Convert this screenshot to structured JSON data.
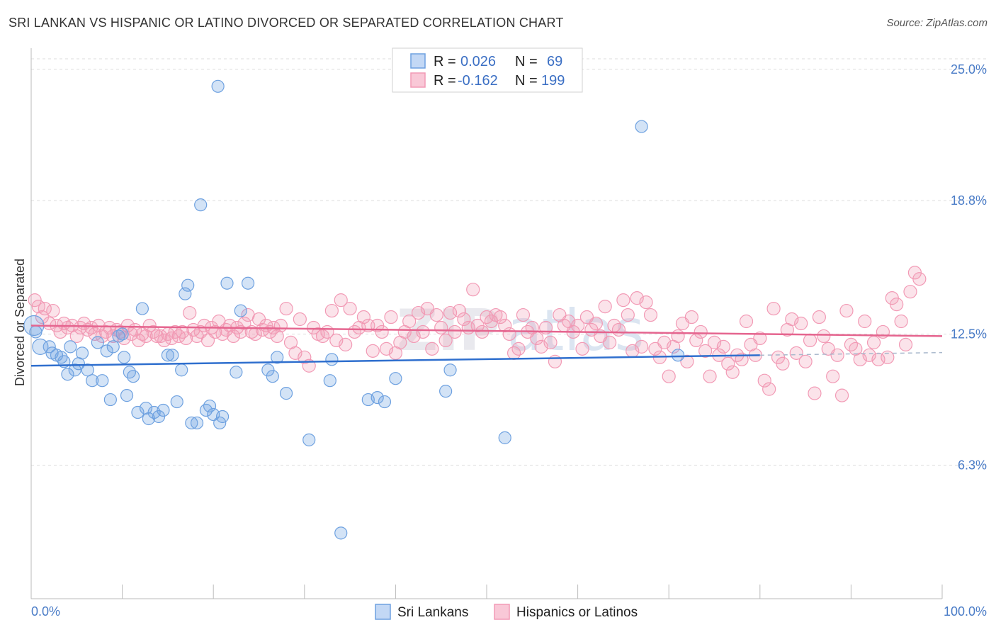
{
  "title": "SRI LANKAN VS HISPANIC OR LATINO DIVORCED OR SEPARATED CORRELATION CHART",
  "source": "Source: ZipAtlas.com",
  "watermark": {
    "left": "ZIP",
    "right": "atlas"
  },
  "legend": {
    "rows": [
      {
        "r_label": "R =",
        "r_value": "0.026",
        "n_label": "N =",
        "n_value": "69"
      },
      {
        "r_label": "R =",
        "r_value": "-0.162",
        "n_label": "N =",
        "n_value": "199"
      }
    ]
  },
  "bottom_legend": [
    "Sri Lankans",
    "Hispanics or Latinos"
  ],
  "chart_data": {
    "type": "scatter",
    "title": "SRI LANKAN VS HISPANIC OR LATINO DIVORCED OR SEPARATED CORRELATION CHART",
    "xlabel": "",
    "ylabel": "Divorced or Separated",
    "xlim": [
      0,
      100
    ],
    "ylim": [
      0,
      26
    ],
    "x_tick_labels": [
      "0.0%",
      "100.0%"
    ],
    "y_ticks": [
      6.3,
      12.5,
      18.8,
      25.0
    ],
    "y_tick_labels": [
      "6.3%",
      "12.5%",
      "18.8%",
      "25.0%"
    ],
    "grid": "horizontal dashed",
    "colors": {
      "sri": "#6ea1e0",
      "sri_line": "#2f6fce",
      "hisp": "#f29ab5",
      "hisp_line": "#e5658f"
    },
    "series": [
      {
        "name": "Sri Lankans",
        "R": 0.026,
        "N": 69,
        "trend": {
          "x": [
            0,
            80
          ],
          "y": [
            11.0,
            11.5
          ]
        },
        "points": [
          [
            0.3,
            12.9
          ],
          [
            0.5,
            12.6
          ],
          [
            1,
            11.9
          ],
          [
            2,
            11.9
          ],
          [
            2.3,
            11.6
          ],
          [
            2.8,
            11.5
          ],
          [
            3.3,
            11.4
          ],
          [
            3.6,
            11.2
          ],
          [
            4,
            10.6
          ],
          [
            4.3,
            11.9
          ],
          [
            4.8,
            10.8
          ],
          [
            5.2,
            11.1
          ],
          [
            5.6,
            11.6
          ],
          [
            6.2,
            10.8
          ],
          [
            6.7,
            10.3
          ],
          [
            7.3,
            12.1
          ],
          [
            7.8,
            10.3
          ],
          [
            8.3,
            11.7
          ],
          [
            8.7,
            9.4
          ],
          [
            9,
            11.9
          ],
          [
            9.6,
            12.4
          ],
          [
            10,
            12.5
          ],
          [
            10.2,
            11.4
          ],
          [
            10.5,
            9.6
          ],
          [
            10.8,
            10.7
          ],
          [
            11.2,
            10.5
          ],
          [
            11.7,
            8.8
          ],
          [
            12.2,
            13.7
          ],
          [
            12.6,
            9.0
          ],
          [
            12.9,
            8.5
          ],
          [
            13.5,
            8.8
          ],
          [
            14,
            8.6
          ],
          [
            14.5,
            8.9
          ],
          [
            15,
            11.5
          ],
          [
            15.5,
            11.5
          ],
          [
            16,
            9.3
          ],
          [
            16.5,
            10.8
          ],
          [
            16.9,
            14.4
          ],
          [
            17.2,
            14.8
          ],
          [
            17.6,
            8.3
          ],
          [
            18.2,
            8.3
          ],
          [
            18.6,
            18.6
          ],
          [
            19.2,
            8.9
          ],
          [
            19.6,
            9.1
          ],
          [
            20,
            8.7
          ],
          [
            20.7,
            8.3
          ],
          [
            20.5,
            24.2
          ],
          [
            21,
            8.6
          ],
          [
            21.5,
            14.9
          ],
          [
            22.5,
            10.7
          ],
          [
            23,
            13.6
          ],
          [
            23.8,
            14.9
          ],
          [
            26,
            10.8
          ],
          [
            26.5,
            10.5
          ],
          [
            27,
            11.4
          ],
          [
            28,
            9.7
          ],
          [
            30.5,
            7.5
          ],
          [
            32.8,
            10.3
          ],
          [
            33,
            11.3
          ],
          [
            34,
            3.1
          ],
          [
            37,
            9.4
          ],
          [
            38,
            9.5
          ],
          [
            38.8,
            9.3
          ],
          [
            40,
            10.4
          ],
          [
            45.5,
            9.8
          ],
          [
            46,
            10.8
          ],
          [
            52,
            7.6
          ],
          [
            67,
            22.3
          ],
          [
            71,
            11.5
          ]
        ]
      },
      {
        "name": "Hispanics or Latinos",
        "R": -0.162,
        "N": 199,
        "trend": {
          "x": [
            0,
            100
          ],
          "y": [
            12.9,
            12.4
          ]
        },
        "points": [
          [
            0.4,
            14.1
          ],
          [
            0.8,
            13.8
          ],
          [
            1.2,
            13.3
          ],
          [
            1.5,
            13.7
          ],
          [
            2,
            13.0
          ],
          [
            2.4,
            13.6
          ],
          [
            2.8,
            12.9
          ],
          [
            3.2,
            12.6
          ],
          [
            3.6,
            13.0
          ],
          [
            4,
            12.8
          ],
          [
            4.5,
            12.9
          ],
          [
            5,
            12.4
          ],
          [
            5.4,
            12.8
          ],
          [
            5.8,
            13.0
          ],
          [
            6.2,
            12.7
          ],
          [
            6.6,
            12.8
          ],
          [
            7,
            12.5
          ],
          [
            7.4,
            12.9
          ],
          [
            7.8,
            12.4
          ],
          [
            8.2,
            12.6
          ],
          [
            8.6,
            12.8
          ],
          [
            9,
            12.4
          ],
          [
            9.4,
            12.7
          ],
          [
            9.8,
            12.6
          ],
          [
            10.2,
            12.3
          ],
          [
            10.6,
            12.9
          ],
          [
            11,
            12.5
          ],
          [
            11.4,
            12.7
          ],
          [
            11.8,
            12.2
          ],
          [
            12.2,
            12.5
          ],
          [
            12.6,
            12.4
          ],
          [
            13,
            12.9
          ],
          [
            13.4,
            12.6
          ],
          [
            13.8,
            12.4
          ],
          [
            14.2,
            12.4
          ],
          [
            14.6,
            12.2
          ],
          [
            15,
            12.5
          ],
          [
            15.4,
            12.3
          ],
          [
            15.8,
            12.6
          ],
          [
            16.2,
            12.4
          ],
          [
            16.6,
            12.6
          ],
          [
            17,
            12.3
          ],
          [
            17.4,
            13.5
          ],
          [
            17.8,
            12.7
          ],
          [
            18.2,
            12.4
          ],
          [
            18.6,
            12.6
          ],
          [
            19,
            12.9
          ],
          [
            19.4,
            12.2
          ],
          [
            19.8,
            12.8
          ],
          [
            20.2,
            12.6
          ],
          [
            20.6,
            13.1
          ],
          [
            21,
            12.5
          ],
          [
            21.4,
            12.7
          ],
          [
            21.8,
            12.9
          ],
          [
            22.2,
            12.4
          ],
          [
            22.6,
            12.8
          ],
          [
            23,
            12.6
          ],
          [
            23.4,
            13.0
          ],
          [
            23.8,
            13.4
          ],
          [
            24.2,
            12.6
          ],
          [
            24.6,
            12.5
          ],
          [
            25,
            13.2
          ],
          [
            25.4,
            12.7
          ],
          [
            25.8,
            12.9
          ],
          [
            26.2,
            12.6
          ],
          [
            26.6,
            12.8
          ],
          [
            27,
            12.4
          ],
          [
            27.4,
            12.9
          ],
          [
            28,
            13.7
          ],
          [
            28.5,
            12.1
          ],
          [
            29,
            11.6
          ],
          [
            29.5,
            13.2
          ],
          [
            30,
            11.4
          ],
          [
            30.5,
            11.0
          ],
          [
            31,
            12.8
          ],
          [
            31.5,
            12.5
          ],
          [
            32,
            12.4
          ],
          [
            32.5,
            12.6
          ],
          [
            33,
            13.6
          ],
          [
            33.5,
            12.2
          ],
          [
            34,
            14.1
          ],
          [
            34.5,
            12.0
          ],
          [
            35,
            13.7
          ],
          [
            35.5,
            12.6
          ],
          [
            36,
            12.8
          ],
          [
            36.5,
            13.3
          ],
          [
            37,
            12.9
          ],
          [
            37.5,
            11.7
          ],
          [
            38,
            12.9
          ],
          [
            38.5,
            12.6
          ],
          [
            39,
            11.8
          ],
          [
            39.5,
            13.3
          ],
          [
            40,
            11.6
          ],
          [
            40.5,
            12.1
          ],
          [
            41,
            12.6
          ],
          [
            41.5,
            13.1
          ],
          [
            42,
            12.4
          ],
          [
            42.5,
            13.5
          ],
          [
            43,
            12.6
          ],
          [
            43.5,
            13.7
          ],
          [
            44,
            11.8
          ],
          [
            44.5,
            13.4
          ],
          [
            45,
            12.8
          ],
          [
            45.5,
            12.2
          ],
          [
            46,
            13.5
          ],
          [
            46.5,
            12.6
          ],
          [
            47,
            13.6
          ],
          [
            47.5,
            13.2
          ],
          [
            48,
            12.8
          ],
          [
            48.5,
            14.6
          ],
          [
            49,
            12.9
          ],
          [
            49.5,
            12.6
          ],
          [
            50,
            13.3
          ],
          [
            50.5,
            13.1
          ],
          [
            51,
            13.4
          ],
          [
            51.5,
            13.3
          ],
          [
            52,
            12.9
          ],
          [
            52.5,
            12.5
          ],
          [
            53,
            11.6
          ],
          [
            53.5,
            11.8
          ],
          [
            54,
            13.4
          ],
          [
            54.5,
            12.6
          ],
          [
            55,
            12.8
          ],
          [
            55.5,
            12.3
          ],
          [
            56,
            11.9
          ],
          [
            56.5,
            12.8
          ],
          [
            57,
            12.1
          ],
          [
            57.5,
            11.2
          ],
          [
            58,
            13.4
          ],
          [
            58.5,
            12.9
          ],
          [
            59,
            13.1
          ],
          [
            59.5,
            12.6
          ],
          [
            60,
            12.9
          ],
          [
            60.5,
            11.8
          ],
          [
            61,
            13.3
          ],
          [
            61.5,
            12.7
          ],
          [
            62,
            13.0
          ],
          [
            62.5,
            12.4
          ],
          [
            63,
            13.8
          ],
          [
            63.5,
            12.1
          ],
          [
            64,
            12.9
          ],
          [
            64.5,
            12.7
          ],
          [
            65,
            14.1
          ],
          [
            65.5,
            13.4
          ],
          [
            66,
            11.7
          ],
          [
            66.5,
            14.2
          ],
          [
            67,
            11.9
          ],
          [
            67.5,
            14.0
          ],
          [
            68,
            13.4
          ],
          [
            68.5,
            11.8
          ],
          [
            69,
            11.4
          ],
          [
            69.5,
            12.1
          ],
          [
            70,
            10.5
          ],
          [
            70.5,
            11.9
          ],
          [
            71,
            12.4
          ],
          [
            71.5,
            13.0
          ],
          [
            72,
            11.2
          ],
          [
            72.5,
            13.3
          ],
          [
            73,
            12.2
          ],
          [
            73.5,
            12.6
          ],
          [
            74,
            11.7
          ],
          [
            74.5,
            10.5
          ],
          [
            75,
            12.1
          ],
          [
            75.5,
            11.5
          ],
          [
            76,
            11.9
          ],
          [
            76.5,
            11.1
          ],
          [
            77,
            10.7
          ],
          [
            77.5,
            11.5
          ],
          [
            78,
            11.3
          ],
          [
            78.5,
            13.1
          ],
          [
            79,
            12.0
          ],
          [
            79.5,
            11.5
          ],
          [
            80,
            12.3
          ],
          [
            80.5,
            10.3
          ],
          [
            81,
            9.9
          ],
          [
            81.5,
            13.7
          ],
          [
            82,
            11.4
          ],
          [
            82.5,
            11.1
          ],
          [
            83,
            12.7
          ],
          [
            83.5,
            13.2
          ],
          [
            84,
            11.6
          ],
          [
            84.5,
            13.0
          ],
          [
            85,
            11.2
          ],
          [
            85.5,
            12.2
          ],
          [
            86,
            9.7
          ],
          [
            86.5,
            13.3
          ],
          [
            87,
            12.4
          ],
          [
            87.5,
            11.8
          ],
          [
            88,
            10.5
          ],
          [
            88.5,
            11.5
          ],
          [
            89,
            9.6
          ],
          [
            89.5,
            13.6
          ],
          [
            90,
            12.0
          ],
          [
            90.5,
            11.8
          ],
          [
            91,
            11.3
          ],
          [
            91.5,
            13.1
          ],
          [
            92,
            11.5
          ],
          [
            92.5,
            12.1
          ],
          [
            93,
            11.3
          ],
          [
            93.5,
            12.6
          ],
          [
            94,
            11.4
          ],
          [
            94.5,
            14.2
          ],
          [
            95,
            13.9
          ],
          [
            95.5,
            13.1
          ],
          [
            96,
            12.0
          ],
          [
            96.5,
            14.5
          ],
          [
            97,
            15.4
          ],
          [
            97.5,
            15.1
          ]
        ]
      }
    ]
  }
}
